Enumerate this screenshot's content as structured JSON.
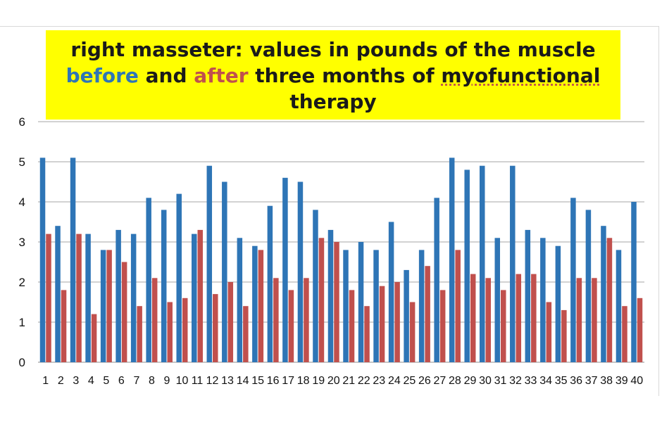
{
  "chart_data": {
    "type": "bar",
    "title_parts": {
      "line1": "right masseter: values in pounds of the muscle",
      "before_word": "before",
      "and_word": " and ",
      "after_word": "after",
      "mid_text": " three months of ",
      "underlined_word": "myofunctional",
      "line3": "therapy"
    },
    "xlabel": "",
    "ylabel": "",
    "ylim": [
      0,
      6
    ],
    "yticks": [
      "0",
      "1",
      "2",
      "3",
      "4",
      "5",
      "6"
    ],
    "grid": true,
    "categories": [
      "1",
      "2",
      "3",
      "4",
      "5",
      "6",
      "7",
      "8",
      "9",
      "10",
      "11",
      "12",
      "13",
      "14",
      "15",
      "16",
      "17",
      "18",
      "19",
      "20",
      "21",
      "22",
      "23",
      "24",
      "25",
      "26",
      "27",
      "28",
      "29",
      "30",
      "31",
      "32",
      "33",
      "34",
      "35",
      "36",
      "37",
      "38",
      "39",
      "40"
    ],
    "series": [
      {
        "color": "#2e75b6",
        "values": [
          5.1,
          3.4,
          5.1,
          3.2,
          2.8,
          3.3,
          3.2,
          4.1,
          3.8,
          4.2,
          3.2,
          4.9,
          4.5,
          3.1,
          2.9,
          3.9,
          4.6,
          4.5,
          3.8,
          3.3,
          2.8,
          3.0,
          2.8,
          3.5,
          2.3,
          2.8,
          4.1,
          5.1,
          4.8,
          4.9,
          3.1,
          4.9,
          3.3,
          3.1,
          2.9,
          4.1,
          3.8,
          3.4,
          2.8,
          4.0
        ]
      },
      {
        "color": "#c0504d",
        "values": [
          3.2,
          1.8,
          3.2,
          1.2,
          2.8,
          2.5,
          1.4,
          2.1,
          1.5,
          1.6,
          3.3,
          1.7,
          2.0,
          1.4,
          2.8,
          2.1,
          1.8,
          2.1,
          3.1,
          3.0,
          1.8,
          1.4,
          1.9,
          2.0,
          1.5,
          2.4,
          1.8,
          2.8,
          2.2,
          2.1,
          1.8,
          2.2,
          2.2,
          1.5,
          1.3,
          2.1,
          2.1,
          3.1,
          1.4,
          1.6
        ]
      }
    ]
  }
}
